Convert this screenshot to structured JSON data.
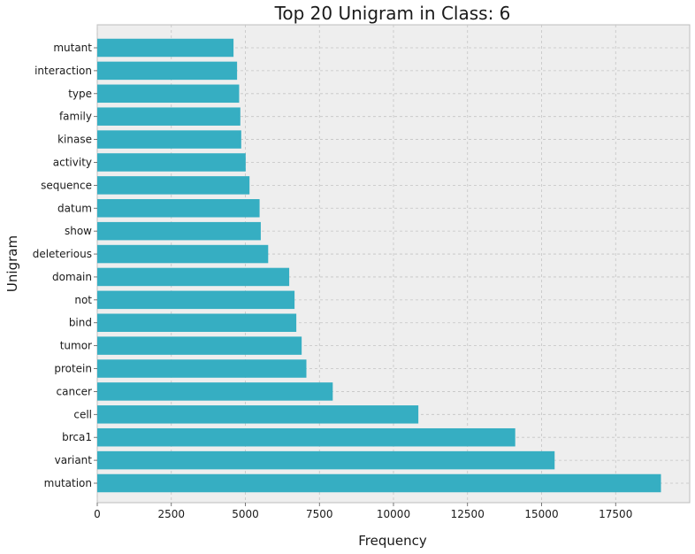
{
  "chart_data": {
    "type": "bar",
    "orientation": "horizontal",
    "title": "Top 20 Unigram in Class: 6",
    "xlabel": "Frequency",
    "ylabel": "Unigram",
    "xlim": [
      0,
      20000
    ],
    "xticks": [
      0,
      2500,
      5000,
      7500,
      10000,
      12500,
      15000,
      17500
    ],
    "grid": true,
    "bar_color": "#36aec2",
    "background_color": "#eeeeee",
    "categories": [
      "mutation",
      "variant",
      "brca1",
      "cell",
      "cancer",
      "protein",
      "tumor",
      "bind",
      "not",
      "domain",
      "deleterious",
      "show",
      "datum",
      "sequence",
      "activity",
      "kinase",
      "family",
      "type",
      "interaction",
      "mutant"
    ],
    "values": [
      19030,
      15440,
      14110,
      10840,
      7950,
      7060,
      6900,
      6720,
      6660,
      6480,
      5770,
      5520,
      5480,
      5140,
      5010,
      4860,
      4830,
      4790,
      4720,
      4600
    ]
  }
}
